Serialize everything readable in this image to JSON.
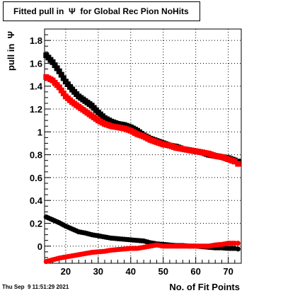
{
  "header": {
    "title": "Fitted pull in  Ψ  for Global Rec Pion NoHits",
    "timestamp": "Thu Sep  9 11:51:29 2021"
  },
  "chart_data": {
    "type": "scatter",
    "title": "Fitted pull in  Ψ  for Global Rec Pion NoHits",
    "xlabel": "No. of Fit Points",
    "ylabel": "pull in  Ψ",
    "xlim": [
      13.5,
      74
    ],
    "ylim": [
      -0.15,
      1.9
    ],
    "x_ticks": [
      20,
      30,
      40,
      50,
      60,
      70
    ],
    "y_ticks": [
      0,
      0.2,
      0.4,
      0.6,
      0.8,
      1,
      1.2,
      1.4,
      1.6,
      1.8
    ],
    "x_tick_labels": [
      "20",
      "30",
      "40",
      "50",
      "60",
      "70"
    ],
    "y_tick_labels": [
      "0",
      "0.2",
      "0.4",
      "0.6",
      "0.8",
      "1",
      "1.2",
      "1.4",
      "1.6",
      "1.8"
    ],
    "grid": true,
    "series": [
      {
        "color": "#000000",
        "marker": "square",
        "x": [
          14,
          16,
          18,
          20,
          22,
          24,
          26,
          28,
          30,
          32,
          34,
          36,
          38,
          40,
          42,
          44,
          46,
          48,
          50,
          52,
          54,
          56,
          58,
          60,
          62,
          64,
          66,
          68,
          70,
          72,
          73
        ],
        "y": [
          1.67,
          1.61,
          1.53,
          1.44,
          1.37,
          1.31,
          1.27,
          1.23,
          1.17,
          1.12,
          1.09,
          1.07,
          1.06,
          1.04,
          1.01,
          0.97,
          0.94,
          0.92,
          0.9,
          0.88,
          0.87,
          0.85,
          0.84,
          0.83,
          0.82,
          0.8,
          0.79,
          0.78,
          0.77,
          0.75,
          0.74
        ]
      },
      {
        "color": "#ff0000",
        "marker": "square",
        "x": [
          14,
          16,
          18,
          20,
          22,
          24,
          26,
          28,
          30,
          32,
          34,
          36,
          38,
          40,
          42,
          44,
          46,
          48,
          50,
          52,
          54,
          56,
          58,
          60,
          62,
          64,
          66,
          68,
          70,
          72,
          73
        ],
        "y": [
          1.48,
          1.45,
          1.39,
          1.31,
          1.26,
          1.22,
          1.18,
          1.14,
          1.1,
          1.07,
          1.05,
          1.04,
          1.03,
          1.01,
          0.98,
          0.96,
          0.93,
          0.91,
          0.89,
          0.88,
          0.86,
          0.85,
          0.84,
          0.83,
          0.82,
          0.81,
          0.79,
          0.78,
          0.76,
          0.74,
          0.72
        ]
      },
      {
        "color": "#000000",
        "marker": "circle",
        "x": [
          14,
          16,
          18,
          20,
          22,
          24,
          26,
          28,
          30,
          32,
          34,
          36,
          38,
          40,
          42,
          44,
          46,
          48,
          50,
          52,
          54,
          56,
          58,
          60,
          62,
          64,
          66,
          68,
          70,
          72,
          73
        ],
        "y": [
          0.255,
          0.23,
          0.205,
          0.175,
          0.15,
          0.125,
          0.115,
          0.1,
          0.09,
          0.08,
          0.07,
          0.065,
          0.06,
          0.055,
          0.05,
          0.045,
          0.03,
          0.02,
          0.015,
          0.01,
          0.005,
          0.005,
          0.0,
          0.0,
          -0.005,
          -0.01,
          -0.015,
          -0.015,
          -0.02,
          -0.02,
          -0.025
        ]
      },
      {
        "color": "#ff0000",
        "marker": "circle",
        "x": [
          14,
          16,
          18,
          20,
          22,
          24,
          26,
          28,
          30,
          32,
          34,
          36,
          38,
          40,
          42,
          44,
          46,
          48,
          50,
          52,
          54,
          56,
          58,
          60,
          62,
          64,
          66,
          68,
          70,
          72,
          73
        ],
        "y": [
          -0.135,
          -0.12,
          -0.105,
          -0.095,
          -0.085,
          -0.075,
          -0.065,
          -0.055,
          -0.05,
          -0.045,
          -0.035,
          -0.03,
          -0.025,
          -0.02,
          -0.02,
          -0.01,
          0.0,
          0.01,
          0.0,
          0.0,
          0.0,
          0.0,
          0.0,
          0.0,
          0.0,
          0.0,
          0.01,
          0.015,
          0.025,
          0.025,
          0.025
        ]
      }
    ]
  }
}
